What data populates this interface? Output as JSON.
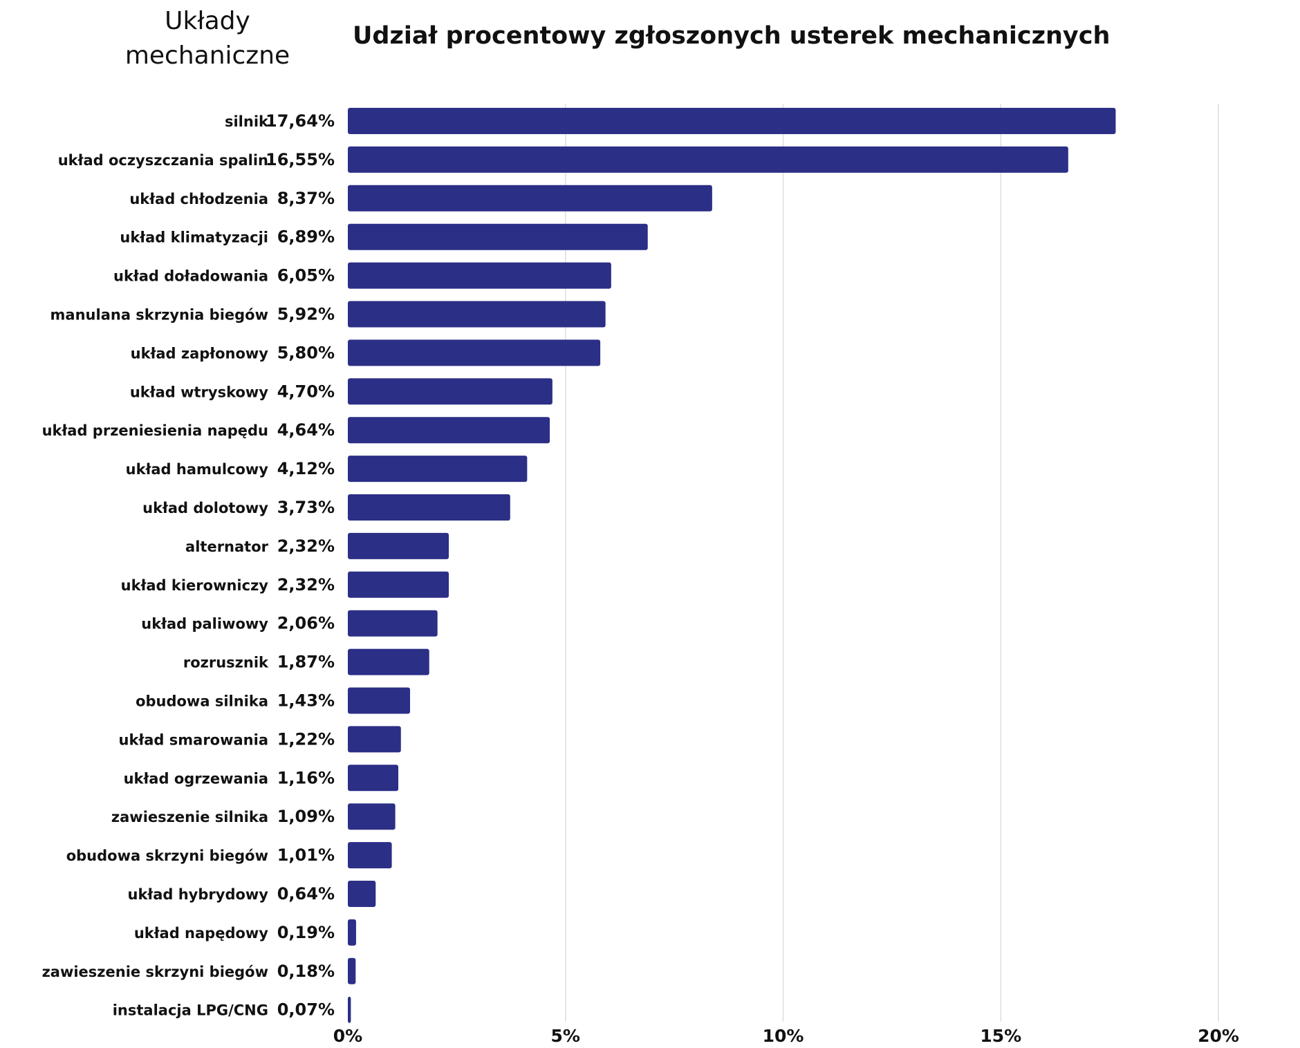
{
  "corner_title": [
    "Układy",
    "mechaniczne"
  ],
  "colors": {
    "bar": "#2b2f86",
    "grid": "#dedede",
    "text": "#111111"
  },
  "chart_data": {
    "type": "bar",
    "orientation": "horizontal",
    "title": "Udział procentowy zgłoszonych usterek mechanicznych",
    "xlabel": "",
    "ylabel": "",
    "xlim": [
      0,
      20
    ],
    "x_ticks": [
      0,
      5,
      10,
      15,
      20
    ],
    "x_tick_labels": [
      "0%",
      "5%",
      "10%",
      "15%",
      "20%"
    ],
    "grid": "vertical",
    "legend": "none",
    "categories": [
      "silnik",
      "układ oczyszczania spalin",
      "układ chłodzenia",
      "układ klimatyzacji",
      "układ doładowania",
      "manulana skrzynia biegów",
      "układ zapłonowy",
      "układ wtryskowy",
      "układ przeniesienia napędu",
      "układ hamulcowy",
      "układ dolotowy",
      "alternator",
      "układ kierowniczy",
      "układ paliwowy",
      "rozrusznik",
      "obudowa silnika",
      "układ smarowania",
      "układ ogrzewania",
      "zawieszenie silnika",
      "obudowa skrzyni biegów",
      "układ hybrydowy",
      "układ napędowy",
      "zawieszenie skrzyni biegów",
      "instalacja LPG/CNG"
    ],
    "values": [
      17.64,
      16.55,
      8.37,
      6.89,
      6.05,
      5.92,
      5.8,
      4.7,
      4.64,
      4.12,
      3.73,
      2.32,
      2.32,
      2.06,
      1.87,
      1.43,
      1.22,
      1.16,
      1.09,
      1.01,
      0.64,
      0.19,
      0.18,
      0.07
    ],
    "value_labels": [
      "17,64%",
      "16,55%",
      "8,37%",
      "6,89%",
      "6,05%",
      "5,92%",
      "5,80%",
      "4,70%",
      "4,64%",
      "4,12%",
      "3,73%",
      "2,32%",
      "2,32%",
      "2,06%",
      "1,87%",
      "1,43%",
      "1,22%",
      "1,16%",
      "1,09%",
      "1,01%",
      "0,64%",
      "0,19%",
      "0,18%",
      "0,07%"
    ]
  }
}
